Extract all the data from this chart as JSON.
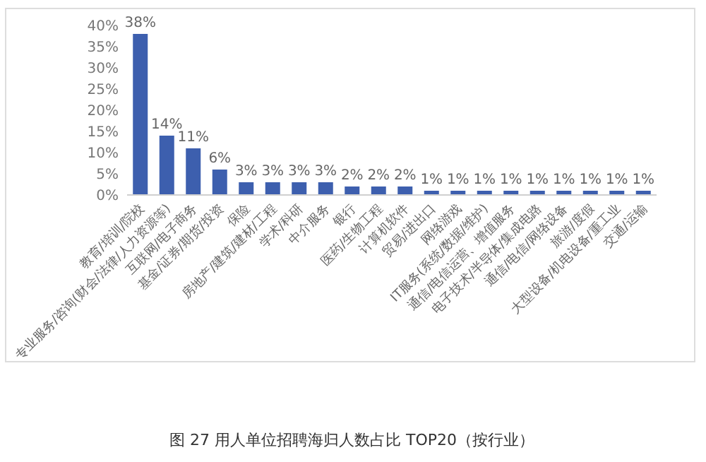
{
  "chart_data": {
    "type": "bar",
    "title": "图 27 用人单位招聘海归人数占比 TOP20（按行业）",
    "categories": [
      "教育/培训/院校",
      "专业服务/咨询(财会/法律/人力资源等)",
      "互联网/电子商务",
      "基金/证券/期货/投资",
      "保险",
      "房地产/建筑/建材/工程",
      "学术/科研",
      "中介服务",
      "银行",
      "医药/生物工程",
      "计算机软件",
      "贸易/进出口",
      "网络游戏",
      "IT服务(系统/数据/维护)",
      "通信/电信运营、增值服务",
      "电子技术/半导体/集成电路",
      "通信/电信/网络设备",
      "旅游/度假",
      "大型设备/机电设备/重工业",
      "交通/运输"
    ],
    "values": [
      38,
      14,
      11,
      6,
      3,
      3,
      3,
      3,
      2,
      2,
      2,
      1,
      1,
      1,
      1,
      1,
      1,
      1,
      1,
      1
    ],
    "value_labels": [
      "38%",
      "14%",
      "11%",
      "6%",
      "3%",
      "3%",
      "3%",
      "3%",
      "2%",
      "2%",
      "2%",
      "1%",
      "1%",
      "1%",
      "1%",
      "1%",
      "1%",
      "1%",
      "1%",
      "1%"
    ],
    "color": "#3d5fae",
    "ylim": [
      0,
      40
    ],
    "yticks": [
      {
        "value": 0,
        "label": "0%"
      },
      {
        "value": 5,
        "label": "5%"
      },
      {
        "value": 10,
        "label": "10%"
      },
      {
        "value": 15,
        "label": "15%"
      },
      {
        "value": 20,
        "label": "20%"
      },
      {
        "value": 25,
        "label": "25%"
      },
      {
        "value": 30,
        "label": "30%"
      },
      {
        "value": 35,
        "label": "35%"
      },
      {
        "value": 40,
        "label": "40%"
      }
    ],
    "grid": false
  }
}
